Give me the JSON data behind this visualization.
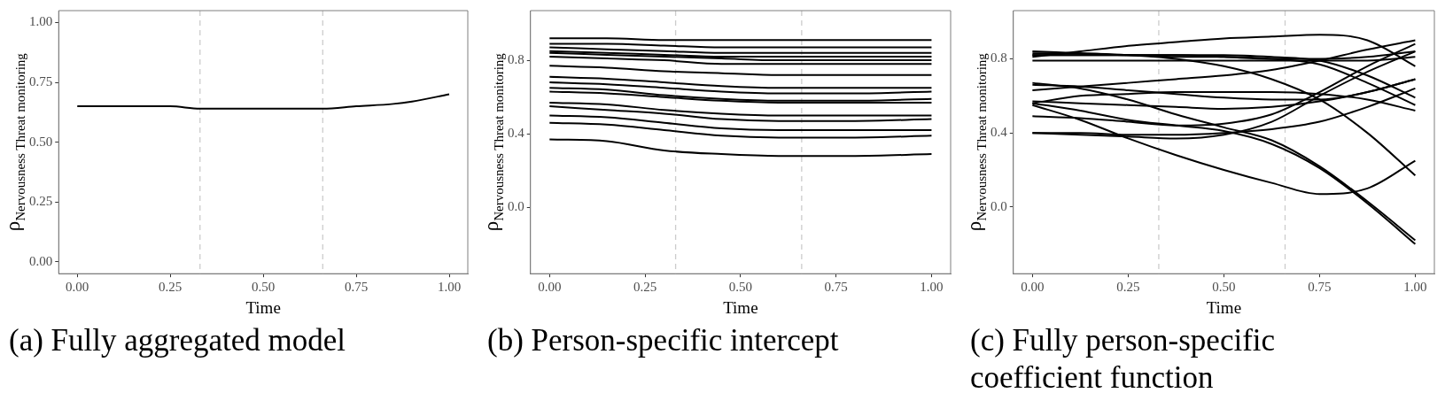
{
  "chart_data": [
    {
      "type": "line",
      "title": "(a) Fully aggregated model",
      "xlabel": "Time",
      "ylabel": "ρ$_{Nervousness Threat monitoring}$",
      "x": [
        0,
        0.1,
        0.25,
        0.33,
        0.45,
        0.6,
        0.66,
        0.75,
        0.85,
        0.9,
        1
      ],
      "xlim": [
        -0.05,
        1.05
      ],
      "xticks": [
        {
          "value": 0,
          "label": "0.00"
        },
        {
          "value": 0.25,
          "label": "0.25"
        },
        {
          "value": 0.5,
          "label": "0.50"
        },
        {
          "value": 0.75,
          "label": "0.75"
        },
        {
          "value": 1,
          "label": "1.00"
        }
      ],
      "ylim": [
        -0.05,
        1.05
      ],
      "yticks": [
        {
          "value": 0,
          "label": "0.00"
        },
        {
          "value": 0.25,
          "label": "0.25"
        },
        {
          "value": 0.5,
          "label": "0.50"
        },
        {
          "value": 0.75,
          "label": "0.75"
        },
        {
          "value": 1,
          "label": "1.00"
        }
      ],
      "ref_lines": [
        {
          "axis": "x",
          "value": 0.33,
          "color": "#cccccc",
          "line_style": "dashed"
        },
        {
          "axis": "x",
          "value": 0.66,
          "color": "#cccccc",
          "line_style": "dashed"
        }
      ],
      "series": [
        {
          "color": "#000000",
          "values": [
            0.65,
            0.65,
            0.65,
            0.64,
            0.64,
            0.64,
            0.64,
            0.65,
            0.66,
            0.67,
            0.7
          ]
        }
      ]
    },
    {
      "type": "line",
      "title": "(b) Person-specific intercept",
      "xlabel": "Time",
      "ylabel": "ρ$_{Nervousness Threat monitoring}$",
      "x": [
        0,
        0.15,
        0.3,
        0.45,
        0.6,
        0.8,
        1
      ],
      "xlim": [
        -0.05,
        1.05
      ],
      "xticks": [
        {
          "value": 0,
          "label": "0.00"
        },
        {
          "value": 0.25,
          "label": "0.25"
        },
        {
          "value": 0.5,
          "label": "0.50"
        },
        {
          "value": 0.75,
          "label": "0.75"
        },
        {
          "value": 1,
          "label": "1.00"
        }
      ],
      "ylim": [
        -0.36,
        1.07
      ],
      "yticks": [
        {
          "value": 0,
          "label": "0.0"
        },
        {
          "value": 0.4,
          "label": "0.4"
        },
        {
          "value": 0.8,
          "label": "0.8"
        }
      ],
      "ref_lines": [
        {
          "axis": "x",
          "value": 0.33,
          "color": "#cccccc",
          "line_style": "dashed"
        },
        {
          "axis": "x",
          "value": 0.66,
          "color": "#cccccc",
          "line_style": "dashed"
        }
      ],
      "series": [
        {
          "color": "#000000",
          "values": [
            0.92,
            0.92,
            0.91,
            0.91,
            0.91,
            0.91,
            0.91
          ]
        },
        {
          "color": "#000000",
          "values": [
            0.89,
            0.89,
            0.88,
            0.87,
            0.87,
            0.87,
            0.87
          ]
        },
        {
          "color": "#000000",
          "values": [
            0.87,
            0.86,
            0.85,
            0.84,
            0.84,
            0.84,
            0.84
          ]
        },
        {
          "color": "#000000",
          "values": [
            0.85,
            0.84,
            0.83,
            0.82,
            0.82,
            0.82,
            0.82
          ]
        },
        {
          "color": "#000000",
          "values": [
            0.84,
            0.83,
            0.82,
            0.81,
            0.8,
            0.8,
            0.8
          ]
        },
        {
          "color": "#000000",
          "values": [
            0.82,
            0.81,
            0.8,
            0.78,
            0.78,
            0.78,
            0.78
          ]
        },
        {
          "color": "#000000",
          "values": [
            0.77,
            0.76,
            0.74,
            0.73,
            0.72,
            0.72,
            0.72
          ]
        },
        {
          "color": "#000000",
          "values": [
            0.71,
            0.7,
            0.68,
            0.66,
            0.65,
            0.65,
            0.65
          ]
        },
        {
          "color": "#000000",
          "values": [
            0.68,
            0.67,
            0.65,
            0.63,
            0.62,
            0.62,
            0.63
          ]
        },
        {
          "color": "#000000",
          "values": [
            0.65,
            0.64,
            0.61,
            0.59,
            0.58,
            0.58,
            0.59
          ]
        },
        {
          "color": "#000000",
          "values": [
            0.63,
            0.62,
            0.6,
            0.58,
            0.57,
            0.57,
            0.57
          ]
        },
        {
          "color": "#000000",
          "values": [
            0.57,
            0.56,
            0.53,
            0.51,
            0.5,
            0.5,
            0.5
          ]
        },
        {
          "color": "#000000",
          "values": [
            0.55,
            0.53,
            0.51,
            0.48,
            0.47,
            0.47,
            0.48
          ]
        },
        {
          "color": "#000000",
          "values": [
            0.5,
            0.49,
            0.46,
            0.43,
            0.42,
            0.42,
            0.42
          ]
        },
        {
          "color": "#000000",
          "values": [
            0.46,
            0.45,
            0.42,
            0.39,
            0.38,
            0.38,
            0.39
          ]
        },
        {
          "color": "#000000",
          "values": [
            0.37,
            0.36,
            0.31,
            0.29,
            0.28,
            0.28,
            0.29
          ]
        }
      ]
    },
    {
      "type": "line",
      "title": "(c) Fully person-specific coefficient function",
      "xlabel": "Time",
      "ylabel": "ρ$_{Nervousness Threat monitoring}$",
      "x": [
        0,
        0.125,
        0.25,
        0.375,
        0.5,
        0.625,
        0.75,
        0.875,
        1
      ],
      "xlim": [
        -0.05,
        1.05
      ],
      "xticks": [
        {
          "value": 0,
          "label": "0.00"
        },
        {
          "value": 0.25,
          "label": "0.25"
        },
        {
          "value": 0.5,
          "label": "0.50"
        },
        {
          "value": 0.75,
          "label": "0.75"
        },
        {
          "value": 1,
          "label": "1.00"
        }
      ],
      "ylim": [
        -0.36,
        1.06
      ],
      "yticks": [
        {
          "value": 0,
          "label": "0.0"
        },
        {
          "value": 0.4,
          "label": "0.4"
        },
        {
          "value": 0.8,
          "label": "0.8"
        }
      ],
      "ref_lines": [
        {
          "axis": "x",
          "value": 0.33,
          "color": "#cccccc",
          "line_style": "dashed"
        },
        {
          "axis": "x",
          "value": 0.66,
          "color": "#cccccc",
          "line_style": "dashed"
        }
      ],
      "series": [
        {
          "color": "#000000",
          "values": [
            0.81,
            0.84,
            0.87,
            0.89,
            0.91,
            0.92,
            0.93,
            0.9,
            0.76
          ]
        },
        {
          "color": "#000000",
          "values": [
            0.84,
            0.83,
            0.82,
            0.8,
            0.76,
            0.69,
            0.58,
            0.4,
            0.17
          ]
        },
        {
          "color": "#000000",
          "values": [
            0.83,
            0.83,
            0.82,
            0.82,
            0.82,
            0.81,
            0.79,
            0.71,
            0.59
          ]
        },
        {
          "color": "#000000",
          "values": [
            0.82,
            0.82,
            0.82,
            0.81,
            0.81,
            0.8,
            0.77,
            0.67,
            0.55
          ]
        },
        {
          "color": "#000000",
          "values": [
            0.79,
            0.79,
            0.79,
            0.79,
            0.79,
            0.79,
            0.79,
            0.79,
            0.81
          ]
        },
        {
          "color": "#000000",
          "values": [
            0.82,
            0.82,
            0.82,
            0.82,
            0.81,
            0.8,
            0.8,
            0.81,
            0.84
          ]
        },
        {
          "color": "#000000",
          "values": [
            0.63,
            0.65,
            0.67,
            0.69,
            0.71,
            0.74,
            0.79,
            0.85,
            0.9
          ]
        },
        {
          "color": "#000000",
          "values": [
            0.66,
            0.65,
            0.63,
            0.61,
            0.59,
            0.58,
            0.58,
            0.62,
            0.69
          ]
        },
        {
          "color": "#000000",
          "values": [
            0.56,
            0.6,
            0.61,
            0.62,
            0.62,
            0.62,
            0.61,
            0.58,
            0.52
          ]
        },
        {
          "color": "#000000",
          "values": [
            0.67,
            0.64,
            0.58,
            0.5,
            0.43,
            0.36,
            0.22,
            0.03,
            -0.18
          ]
        },
        {
          "color": "#000000",
          "values": [
            0.56,
            0.52,
            0.47,
            0.44,
            0.41,
            0.34,
            0.21,
            0.02,
            -0.2
          ]
        },
        {
          "color": "#000000",
          "values": [
            0.55,
            0.47,
            0.37,
            0.28,
            0.2,
            0.13,
            0.07,
            0.1,
            0.25
          ]
        },
        {
          "color": "#000000",
          "values": [
            0.49,
            0.48,
            0.46,
            0.44,
            0.45,
            0.5,
            0.62,
            0.76,
            0.88
          ]
        },
        {
          "color": "#000000",
          "values": [
            0.4,
            0.39,
            0.38,
            0.37,
            0.39,
            0.46,
            0.6,
            0.73,
            0.84
          ]
        },
        {
          "color": "#000000",
          "values": [
            0.4,
            0.4,
            0.39,
            0.39,
            0.4,
            0.42,
            0.46,
            0.54,
            0.64
          ]
        },
        {
          "color": "#000000",
          "values": [
            0.57,
            0.56,
            0.55,
            0.54,
            0.53,
            0.54,
            0.57,
            0.62,
            0.69
          ]
        }
      ]
    }
  ]
}
